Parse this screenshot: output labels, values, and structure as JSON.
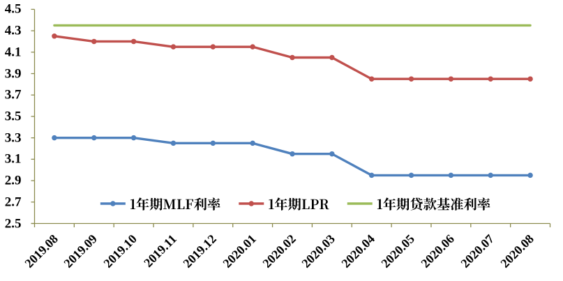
{
  "chart_data": {
    "type": "line",
    "title": "",
    "xlabel": "",
    "ylabel": "",
    "categories": [
      "2019.08",
      "2019.09",
      "2019.10",
      "2019.11",
      "2019.12",
      "2020.01",
      "2020.02",
      "2020.03",
      "2020.04",
      "2020.05",
      "2020.06",
      "2020.07",
      "2020.08"
    ],
    "series": [
      {
        "name": "1年期MLF利率",
        "color": "#4F81BD",
        "marker": "circle",
        "values": [
          3.3,
          3.3,
          3.3,
          3.25,
          3.25,
          3.25,
          3.15,
          3.15,
          2.95,
          2.95,
          2.95,
          2.95,
          2.95
        ]
      },
      {
        "name": "1年期LPR",
        "color": "#C0504D",
        "marker": "circle",
        "values": [
          4.25,
          4.2,
          4.2,
          4.15,
          4.15,
          4.15,
          4.05,
          4.05,
          3.85,
          3.85,
          3.85,
          3.85,
          3.85
        ]
      },
      {
        "name": "1年期贷款基准利率",
        "color": "#9BBB59",
        "marker": "none",
        "values": [
          4.35,
          4.35,
          4.35,
          4.35,
          4.35,
          4.35,
          4.35,
          4.35,
          4.35,
          4.35,
          4.35,
          4.35,
          4.35
        ]
      }
    ],
    "ylim": [
      2.5,
      4.5
    ],
    "ytick_step": 0.2,
    "ytick_labels": [
      "2.5",
      "2.7",
      "2.9",
      "3.1",
      "3.3",
      "3.5",
      "3.7",
      "3.9",
      "4.1",
      "4.3",
      "4.5"
    ],
    "grid": false,
    "legend_position": "bottom-inside",
    "axis_color": "#8B8B4E",
    "text_color": "#000000",
    "background": "#FFFFFF"
  }
}
